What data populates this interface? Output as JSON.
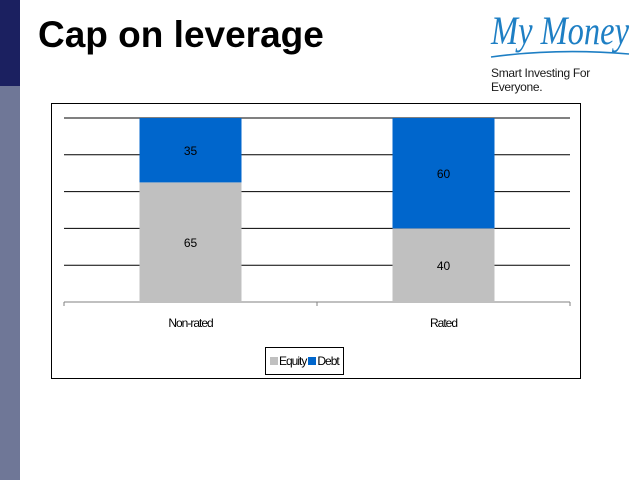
{
  "slide": {
    "title": "Cap on leverage",
    "logo_text": "My Money",
    "logo_tagline": "Smart Investing For Everyone."
  },
  "colors": {
    "accent_dark": "#1b2060",
    "accent_side": "#6f7797",
    "equity": "#c0c0c0",
    "debt": "#0066cc",
    "logo": "#1e7fc4"
  },
  "chart_data": {
    "type": "bar",
    "stacked": true,
    "categories": [
      "Non-rated",
      "Rated"
    ],
    "series": [
      {
        "name": "Equity",
        "values": [
          65,
          40
        ],
        "color": "#c0c0c0"
      },
      {
        "name": "Debt",
        "values": [
          35,
          60
        ],
        "color": "#0066cc"
      }
    ],
    "ylim": [
      0,
      100
    ],
    "grid": true,
    "legend_position": "bottom"
  }
}
